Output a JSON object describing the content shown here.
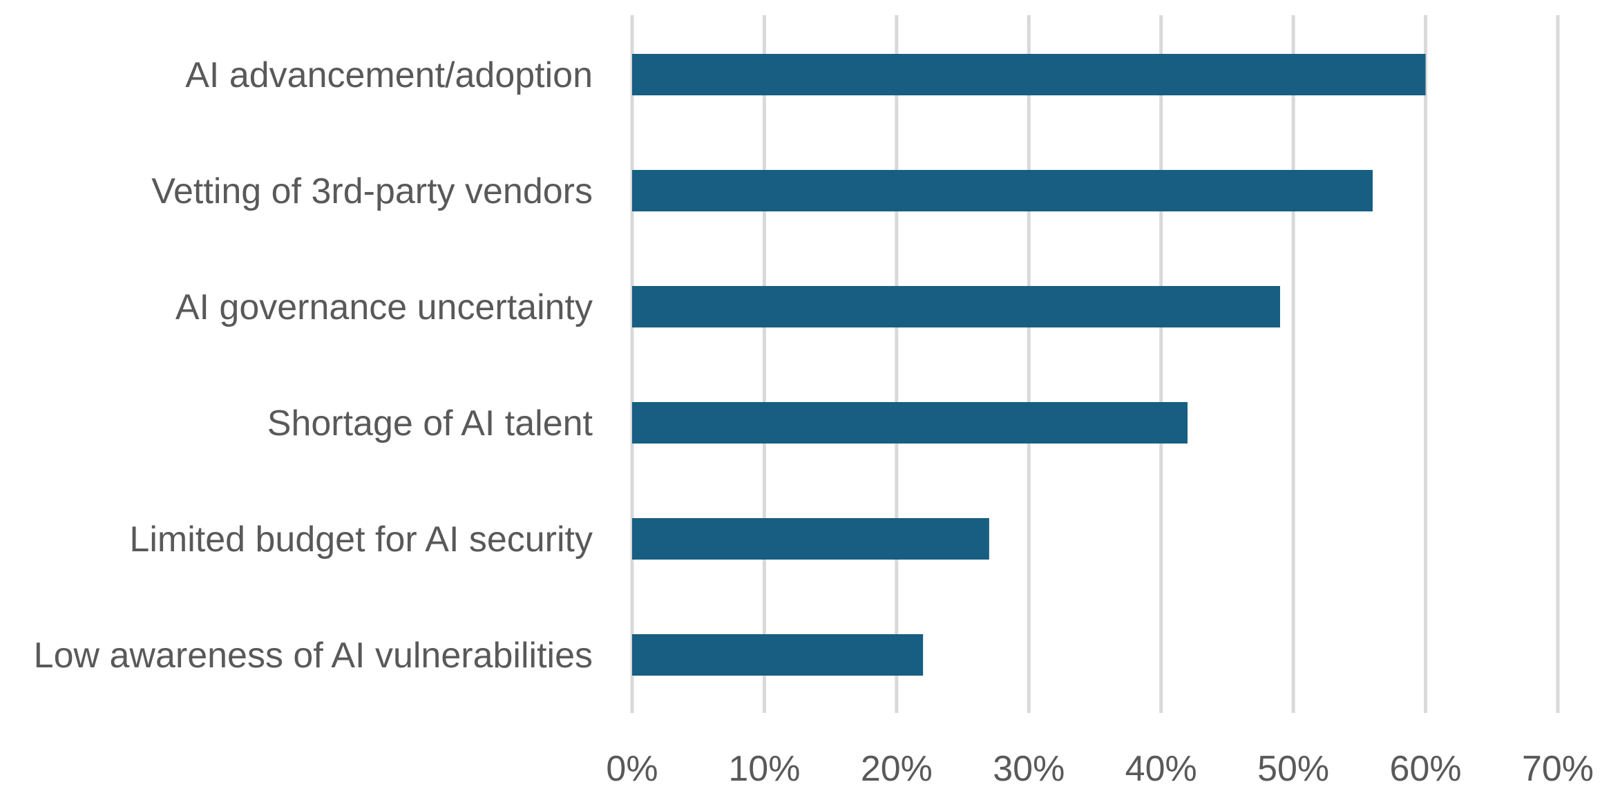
{
  "chart_data": {
    "type": "bar",
    "orientation": "horizontal",
    "categories": [
      "AI advancement/adoption",
      "Vetting of 3rd-party vendors",
      "AI governance uncertainty",
      "Shortage of AI talent",
      "Limited budget for AI security",
      "Low awareness of AI vulnerabilities"
    ],
    "values": [
      60,
      56,
      49,
      42,
      27,
      22
    ],
    "title": "",
    "xlabel": "",
    "ylabel": "",
    "xlim": [
      0,
      70
    ],
    "xticks": [
      0,
      10,
      20,
      30,
      40,
      50,
      60,
      70
    ],
    "xtick_labels": [
      "0%",
      "10%",
      "20%",
      "30%",
      "40%",
      "50%",
      "60%",
      "70%"
    ],
    "grid": "vertical",
    "legend": "none",
    "bar_color": "#175e82",
    "grid_color": "#d9d9d9",
    "text_color": "#595959"
  }
}
